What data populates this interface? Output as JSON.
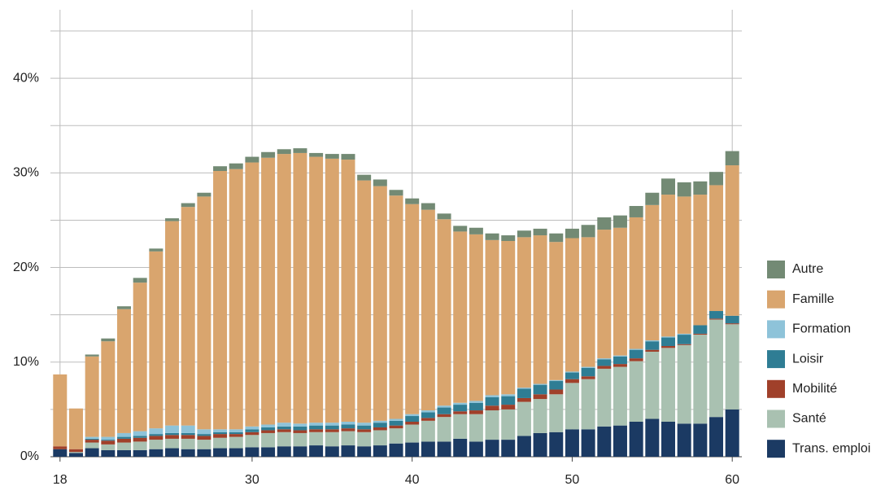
{
  "chart_data": {
    "type": "stacked_bar",
    "x": [
      18,
      19,
      20,
      21,
      22,
      23,
      24,
      25,
      26,
      27,
      28,
      29,
      30,
      31,
      32,
      33,
      34,
      35,
      36,
      37,
      38,
      39,
      40,
      41,
      42,
      43,
      44,
      45,
      46,
      47,
      48,
      49,
      50,
      51,
      52,
      53,
      54,
      55,
      56,
      57,
      58,
      59,
      60
    ],
    "xlim": [
      17.4,
      60.6
    ],
    "xticks": [
      18,
      30,
      40,
      50,
      60
    ],
    "ylim": [
      0,
      45
    ],
    "yticks": [
      {
        "value": 0,
        "label": "0%"
      },
      {
        "value": 10,
        "label": "10%"
      },
      {
        "value": 20,
        "label": "20%"
      },
      {
        "value": 30,
        "label": "30%"
      },
      {
        "value": 40,
        "label": "40%"
      }
    ],
    "minor_yticks": [
      5,
      15,
      25,
      35,
      45
    ],
    "grid": true,
    "legend": "right",
    "series": [
      {
        "name": "Trans. emploi",
        "color": "#1b3a63",
        "values": [
          0.8,
          0.4,
          0.9,
          0.7,
          0.7,
          0.7,
          0.8,
          0.9,
          0.8,
          0.8,
          0.9,
          0.9,
          1.0,
          1.0,
          1.1,
          1.1,
          1.2,
          1.1,
          1.2,
          1.1,
          1.2,
          1.4,
          1.5,
          1.6,
          1.6,
          1.9,
          1.6,
          1.8,
          1.8,
          2.2,
          2.5,
          2.6,
          2.9,
          2.9,
          3.2,
          3.3,
          3.7,
          4.0,
          3.7,
          3.5,
          3.5,
          4.2,
          5.0
        ]
      },
      {
        "name": "Santé",
        "color": "#a9c1b1",
        "values": [
          0,
          0.1,
          0.6,
          0.6,
          0.8,
          0.9,
          1.0,
          1.0,
          1.1,
          1.0,
          1.1,
          1.2,
          1.3,
          1.5,
          1.5,
          1.4,
          1.4,
          1.5,
          1.5,
          1.5,
          1.6,
          1.6,
          1.9,
          2.2,
          2.6,
          2.6,
          2.9,
          3.1,
          3.2,
          3.6,
          3.6,
          4.0,
          4.9,
          5.3,
          6.1,
          6.2,
          6.4,
          7.1,
          7.8,
          8.3,
          9.4,
          10.3,
          9.0
        ]
      },
      {
        "name": "Mobilité",
        "color": "#a0402a",
        "values": [
          0.3,
          0.3,
          0.3,
          0.4,
          0.4,
          0.4,
          0.4,
          0.4,
          0.4,
          0.4,
          0.4,
          0.3,
          0.3,
          0.3,
          0.3,
          0.3,
          0.3,
          0.3,
          0.3,
          0.3,
          0.3,
          0.3,
          0.3,
          0.3,
          0.3,
          0.3,
          0.4,
          0.5,
          0.5,
          0.4,
          0.5,
          0.5,
          0.4,
          0.3,
          0.3,
          0.3,
          0.3,
          0.2,
          0.2,
          0.1,
          0.1,
          0.1,
          0.1
        ]
      },
      {
        "name": "Loisir",
        "color": "#2f7d94",
        "values": [
          0,
          0,
          0.1,
          0.1,
          0.2,
          0.2,
          0.2,
          0.2,
          0.2,
          0.2,
          0.2,
          0.2,
          0.3,
          0.3,
          0.3,
          0.4,
          0.4,
          0.4,
          0.4,
          0.4,
          0.5,
          0.5,
          0.6,
          0.6,
          0.7,
          0.7,
          0.8,
          0.9,
          0.9,
          1.0,
          1.0,
          0.9,
          0.7,
          0.9,
          0.7,
          0.8,
          0.9,
          0.9,
          0.9,
          1.0,
          0.9,
          0.8,
          0.8
        ]
      },
      {
        "name": "Formation",
        "color": "#8ec3d9",
        "values": [
          0,
          0,
          0.2,
          0.3,
          0.4,
          0.5,
          0.6,
          0.8,
          0.8,
          0.5,
          0.3,
          0.3,
          0.3,
          0.3,
          0.4,
          0.3,
          0.3,
          0.3,
          0.3,
          0.3,
          0.2,
          0.2,
          0.2,
          0.2,
          0.2,
          0.2,
          0.2,
          0.2,
          0.2,
          0.1,
          0.1,
          0.1,
          0.1,
          0.1,
          0.1,
          0.1,
          0.1,
          0.1,
          0.1,
          0.1,
          0,
          0,
          0
        ]
      },
      {
        "name": "Famille",
        "color": "#d9a56e",
        "values": [
          7.6,
          4.3,
          8.5,
          10.1,
          13.1,
          15.7,
          18.7,
          21.6,
          23.1,
          24.6,
          27.3,
          27.5,
          27.9,
          28.2,
          28.4,
          28.6,
          28.1,
          27.9,
          27.7,
          25.6,
          24.8,
          23.6,
          22.2,
          21.2,
          19.7,
          18.1,
          17.6,
          16.4,
          16.2,
          15.9,
          15.7,
          14.6,
          14.1,
          13.7,
          13.6,
          13.5,
          13.9,
          14.3,
          15.0,
          14.5,
          13.8,
          13.3,
          15.9
        ]
      },
      {
        "name": "Autre",
        "color": "#738a74",
        "values": [
          0,
          0,
          0.2,
          0.3,
          0.3,
          0.5,
          0.3,
          0.3,
          0.4,
          0.4,
          0.5,
          0.6,
          0.6,
          0.6,
          0.5,
          0.5,
          0.4,
          0.5,
          0.6,
          0.6,
          0.7,
          0.6,
          0.6,
          0.7,
          0.6,
          0.6,
          0.7,
          0.7,
          0.6,
          0.7,
          0.7,
          0.9,
          1.0,
          1.3,
          1.3,
          1.3,
          1.2,
          1.3,
          1.7,
          1.5,
          1.4,
          1.4,
          1.5
        ]
      }
    ]
  }
}
